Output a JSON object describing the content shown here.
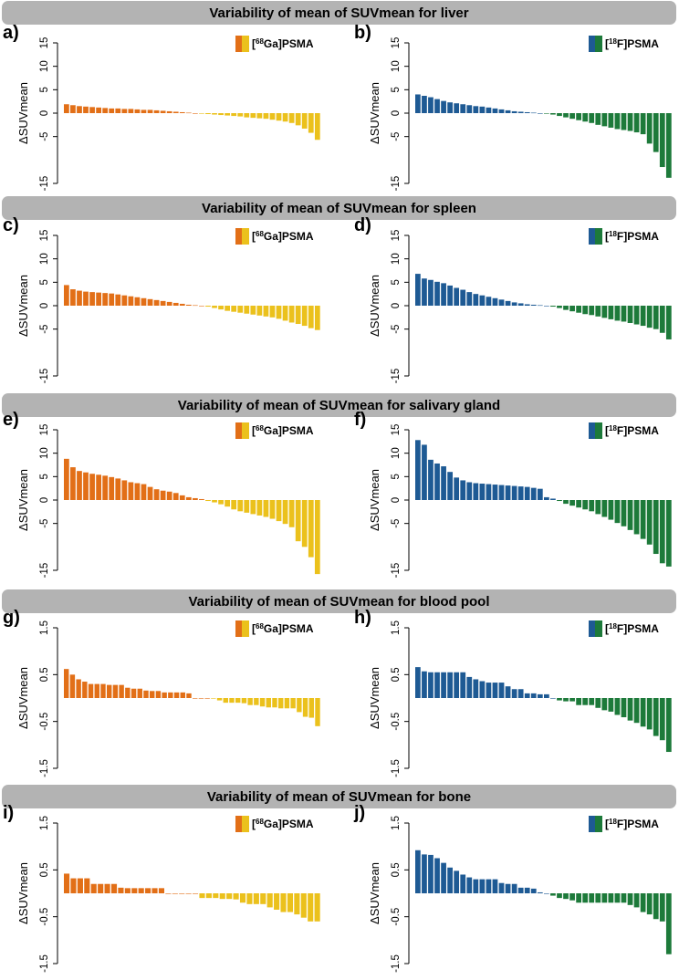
{
  "colors": {
    "ga_positive": "#e26f17",
    "ga_negative": "#ebc11c",
    "f_positive": "#1e5a94",
    "f_negative": "#1d7a3a",
    "header_bg": "#b3b3b3"
  },
  "sections": [
    {
      "id": "liver",
      "title": "Variability of mean of SUVmean for liver"
    },
    {
      "id": "spleen",
      "title": "Variability of mean of SUVmean for spleen"
    },
    {
      "id": "salivary",
      "title": "Variability of mean of SUVmean for salivary gland"
    },
    {
      "id": "blood",
      "title": "Variability of mean of SUVmean for blood pool"
    },
    {
      "id": "bone",
      "title": "Variability of mean of SUVmean for bone"
    }
  ],
  "legends": {
    "ga": {
      "bracket": "[",
      "sup": "68",
      "rest": "Ga]PSMA"
    },
    "f": {
      "bracket": "[",
      "sup": "18",
      "rest": "F]PSMA"
    }
  },
  "chart_data": [
    {
      "panel": "a)",
      "section": "liver",
      "type": "bar",
      "tracer": "ga",
      "ylabel": "ΔSUVmean",
      "ylim": [
        -15,
        15
      ],
      "yticks": [
        -15,
        -5,
        0,
        5,
        10,
        15
      ],
      "ytick_labels": [
        "-15",
        "-5",
        "0",
        "5",
        "10",
        "15"
      ],
      "values": [
        1.9,
        1.7,
        1.5,
        1.4,
        1.3,
        1.2,
        1.1,
        1.0,
        1.0,
        0.9,
        0.9,
        0.8,
        0.7,
        0.7,
        0.6,
        0.5,
        0.4,
        0.3,
        0.2,
        0.1,
        0.0,
        -0.1,
        -0.2,
        -0.3,
        -0.4,
        -0.5,
        -0.6,
        -0.7,
        -0.9,
        -1.0,
        -1.1,
        -1.2,
        -1.4,
        -1.6,
        -1.8,
        -2.1,
        -2.6,
        -3.3,
        -4.2,
        -5.7
      ]
    },
    {
      "panel": "b)",
      "section": "liver",
      "type": "bar",
      "tracer": "f",
      "ylabel": "ΔSUVmean",
      "ylim": [
        -15,
        15
      ],
      "yticks": [
        -15,
        -5,
        0,
        5,
        10,
        15
      ],
      "ytick_labels": [
        "-15",
        "-5",
        "0",
        "5",
        "10",
        "15"
      ],
      "values": [
        4.0,
        3.7,
        3.4,
        3.0,
        2.6,
        2.3,
        2.1,
        1.9,
        1.7,
        1.5,
        1.4,
        1.2,
        1.0,
        0.8,
        0.6,
        0.4,
        0.3,
        0.2,
        0.1,
        0.0,
        -0.1,
        -0.3,
        -0.6,
        -0.9,
        -1.2,
        -1.5,
        -1.8,
        -2.1,
        -2.5,
        -2.8,
        -3.1,
        -3.4,
        -3.6,
        -3.8,
        -4.1,
        -4.5,
        -6.5,
        -8.3,
        -11.5,
        -13.8
      ]
    },
    {
      "panel": "c)",
      "section": "spleen",
      "type": "bar",
      "tracer": "ga",
      "ylabel": "ΔSUVmean",
      "ylim": [
        -15,
        15
      ],
      "yticks": [
        -15,
        -5,
        0,
        5,
        10,
        15
      ],
      "ytick_labels": [
        "-15",
        "-5",
        "0",
        "5",
        "10",
        "15"
      ],
      "values": [
        4.4,
        3.5,
        3.2,
        3.0,
        2.9,
        2.8,
        2.7,
        2.6,
        2.4,
        2.2,
        2.0,
        1.8,
        1.6,
        1.4,
        1.2,
        1.0,
        0.8,
        0.6,
        0.4,
        0.2,
        0.1,
        0.0,
        -0.2,
        -0.5,
        -0.8,
        -1.1,
        -1.3,
        -1.5,
        -1.7,
        -1.9,
        -2.1,
        -2.3,
        -2.5,
        -2.8,
        -3.2,
        -3.6,
        -3.9,
        -4.3,
        -4.8,
        -5.2
      ]
    },
    {
      "panel": "d)",
      "section": "spleen",
      "type": "bar",
      "tracer": "f",
      "ylabel": "ΔSUVmean",
      "ylim": [
        -15,
        15
      ],
      "yticks": [
        -15,
        -5,
        0,
        5,
        10,
        15
      ],
      "ytick_labels": [
        "-15",
        "-5",
        "0",
        "5",
        "10",
        "15"
      ],
      "values": [
        6.8,
        5.8,
        5.5,
        5.1,
        4.8,
        4.3,
        3.8,
        3.4,
        2.9,
        2.5,
        2.2,
        1.9,
        1.6,
        1.3,
        1.0,
        0.7,
        0.5,
        0.3,
        0.2,
        0.1,
        0.0,
        -0.2,
        -0.5,
        -0.9,
        -1.2,
        -1.5,
        -1.8,
        -2.0,
        -2.3,
        -2.6,
        -2.9,
        -3.2,
        -3.4,
        -3.7,
        -4.0,
        -4.3,
        -4.7,
        -5.0,
        -5.8,
        -7.2
      ]
    },
    {
      "panel": "e)",
      "section": "salivary",
      "type": "bar",
      "tracer": "ga",
      "ylabel": "ΔSUVmean",
      "ylim": [
        -15,
        15
      ],
      "yticks": [
        -15,
        -5,
        0,
        5,
        10,
        15
      ],
      "ytick_labels": [
        "-15",
        "-5",
        "0",
        "5",
        "10",
        "15"
      ],
      "values": [
        8.8,
        7.0,
        6.2,
        5.9,
        5.6,
        5.4,
        5.2,
        4.9,
        4.6,
        4.2,
        3.8,
        3.6,
        3.4,
        2.8,
        2.3,
        2.0,
        1.8,
        1.5,
        1.0,
        0.6,
        0.4,
        0.2,
        -0.2,
        -0.5,
        -0.9,
        -1.4,
        -2.0,
        -2.4,
        -2.7,
        -3.0,
        -3.3,
        -3.6,
        -4.0,
        -4.5,
        -5.1,
        -5.8,
        -8.8,
        -10.0,
        -12.2,
        -15.8
      ]
    },
    {
      "panel": "f)",
      "section": "salivary",
      "type": "bar",
      "tracer": "f",
      "ylabel": "ΔSUVmean",
      "ylim": [
        -15,
        15
      ],
      "yticks": [
        -15,
        -5,
        0,
        5,
        10,
        15
      ],
      "ytick_labels": [
        "-15",
        "-5",
        "0",
        "5",
        "10",
        "15"
      ],
      "values": [
        12.8,
        11.8,
        8.6,
        7.8,
        7.2,
        6.0,
        4.8,
        4.2,
        3.8,
        3.6,
        3.5,
        3.4,
        3.3,
        3.2,
        3.1,
        3.0,
        2.9,
        2.8,
        2.6,
        2.4,
        0.6,
        0.3,
        -0.2,
        -0.8,
        -1.2,
        -1.6,
        -2.0,
        -2.4,
        -3.0,
        -3.6,
        -4.2,
        -4.9,
        -5.6,
        -6.4,
        -7.3,
        -8.3,
        -9.5,
        -11.5,
        -13.5,
        -14.2
      ]
    },
    {
      "panel": "g)",
      "section": "blood",
      "type": "bar",
      "tracer": "ga",
      "ylabel": "ΔSUVmean",
      "ylim": [
        -1.5,
        1.5
      ],
      "yticks": [
        -1.5,
        -0.5,
        0.5,
        1.5
      ],
      "ytick_labels": [
        "-1.5",
        "-0.5",
        "0.5",
        "1.5"
      ],
      "values": [
        0.62,
        0.5,
        0.4,
        0.35,
        0.3,
        0.3,
        0.3,
        0.28,
        0.28,
        0.28,
        0.22,
        0.2,
        0.2,
        0.16,
        0.15,
        0.15,
        0.12,
        0.12,
        0.12,
        0.12,
        0.1,
        0.0,
        0.0,
        0.0,
        -0.01,
        -0.05,
        -0.1,
        -0.1,
        -0.1,
        -0.11,
        -0.15,
        -0.15,
        -0.18,
        -0.2,
        -0.2,
        -0.22,
        -0.22,
        -0.22,
        -0.3,
        -0.4,
        -0.42,
        -0.6
      ]
    },
    {
      "panel": "h)",
      "section": "blood",
      "type": "bar",
      "tracer": "f",
      "ylabel": "ΔSUVmean",
      "ylim": [
        -1.5,
        1.5
      ],
      "yticks": [
        -1.5,
        -0.5,
        0.5,
        1.5
      ],
      "ytick_labels": [
        "-1.5",
        "-0.5",
        "0.5",
        "1.5"
      ],
      "values": [
        0.66,
        0.57,
        0.55,
        0.55,
        0.55,
        0.55,
        0.55,
        0.55,
        0.45,
        0.4,
        0.36,
        0.33,
        0.33,
        0.33,
        0.25,
        0.19,
        0.19,
        0.1,
        0.1,
        0.08,
        0.08,
        0.0,
        -0.05,
        -0.07,
        -0.07,
        -0.15,
        -0.15,
        -0.15,
        -0.21,
        -0.26,
        -0.29,
        -0.36,
        -0.41,
        -0.48,
        -0.53,
        -0.61,
        -0.67,
        -0.81,
        -0.9,
        -1.15
      ]
    },
    {
      "panel": "i)",
      "section": "bone",
      "type": "bar",
      "tracer": "ga",
      "ylabel": "ΔSUVmean",
      "ylim": [
        -1.5,
        1.5
      ],
      "yticks": [
        -1.5,
        -0.5,
        0.5,
        1.5
      ],
      "ytick_labels": [
        "-1.5",
        "-0.5",
        "0.5",
        "1.5"
      ],
      "values": [
        0.42,
        0.32,
        0.32,
        0.32,
        0.2,
        0.2,
        0.2,
        0.2,
        0.12,
        0.11,
        0.11,
        0.11,
        0.11,
        0.11,
        0.11,
        0.0,
        0.0,
        0.0,
        0.0,
        0.0,
        -0.1,
        -0.1,
        -0.1,
        -0.12,
        -0.12,
        -0.13,
        -0.2,
        -0.23,
        -0.23,
        -0.23,
        -0.3,
        -0.35,
        -0.4,
        -0.4,
        -0.45,
        -0.52,
        -0.6,
        -0.6
      ]
    },
    {
      "panel": "j)",
      "section": "bone",
      "type": "bar",
      "tracer": "f",
      "ylabel": "ΔSUVmean",
      "ylim": [
        -1.5,
        1.5
      ],
      "yticks": [
        -1.5,
        -0.5,
        0.5,
        1.5
      ],
      "ytick_labels": [
        "-1.5",
        "-0.5",
        "0.5",
        "1.5"
      ],
      "values": [
        0.92,
        0.83,
        0.82,
        0.75,
        0.65,
        0.55,
        0.48,
        0.4,
        0.34,
        0.3,
        0.3,
        0.3,
        0.3,
        0.22,
        0.2,
        0.2,
        0.12,
        0.12,
        0.1,
        0.02,
        0.0,
        -0.05,
        -0.1,
        -0.12,
        -0.15,
        -0.2,
        -0.2,
        -0.2,
        -0.2,
        -0.2,
        -0.2,
        -0.2,
        -0.2,
        -0.25,
        -0.3,
        -0.4,
        -0.45,
        -0.55,
        -0.6,
        -1.3
      ]
    }
  ]
}
